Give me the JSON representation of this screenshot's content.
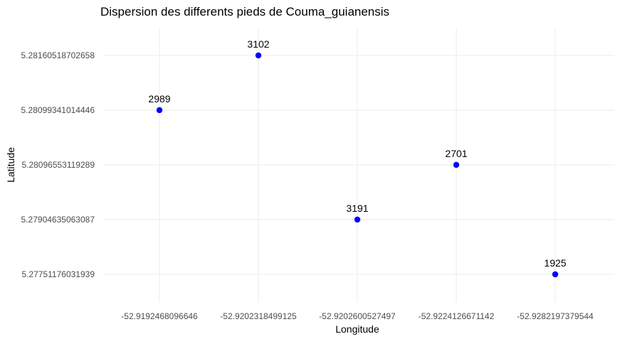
{
  "chart_data": {
    "type": "scatter",
    "title": "Dispersion des differents pieds de Couma_guianensis",
    "xlabel": "Longitude",
    "ylabel": "Latitude",
    "x_scale": "discrete",
    "y_scale": "discrete",
    "x_ticks": [
      "-52.9192468096646",
      "-52.9202318499125",
      "-52.9202600527497",
      "-52.9224126671142",
      "-52.9282197379544"
    ],
    "y_ticks": [
      "5.27751176031939",
      "5.27904635063087",
      "5.28096553119289",
      "5.28099341014446",
      "5.28160518702658"
    ],
    "points": [
      {
        "x": "-52.9192468096646",
        "y": "5.28099341014446",
        "label": "2989"
      },
      {
        "x": "-52.9202318499125",
        "y": "5.28160518702658",
        "label": "3102"
      },
      {
        "x": "-52.9202600527497",
        "y": "5.27904635063087",
        "label": "3191"
      },
      {
        "x": "-52.9224126671142",
        "y": "5.28096553119289",
        "label": "2701"
      },
      {
        "x": "-52.9282197379544",
        "y": "5.27751176031939",
        "label": "1925"
      }
    ],
    "point_color": "#0000ff",
    "grid": true,
    "legend": "none"
  }
}
